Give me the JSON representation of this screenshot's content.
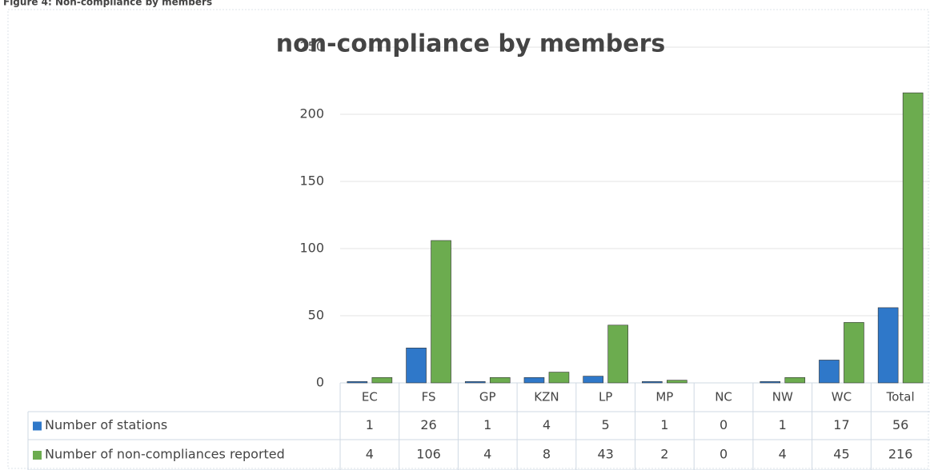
{
  "caption": "Figure 4: Non-compliance by members",
  "chart_data": {
    "type": "bar",
    "title": "non-compliance by members",
    "categories": [
      "EC",
      "FS",
      "GP",
      "KZN",
      "LP",
      "MP",
      "NC",
      "NW",
      "WC",
      "Total"
    ],
    "series": [
      {
        "name": "Number of stations",
        "color": "#2f78c9",
        "values": [
          1,
          26,
          1,
          4,
          5,
          1,
          0,
          1,
          17,
          56
        ]
      },
      {
        "name": "Number of non-compliances reported",
        "color": "#6cac4f",
        "values": [
          4,
          106,
          4,
          8,
          43,
          2,
          0,
          4,
          45,
          216
        ]
      }
    ],
    "ylim": [
      0,
      250
    ],
    "yticks": [
      0,
      50,
      100,
      150,
      200,
      250
    ],
    "grid": true,
    "data_table": true
  }
}
